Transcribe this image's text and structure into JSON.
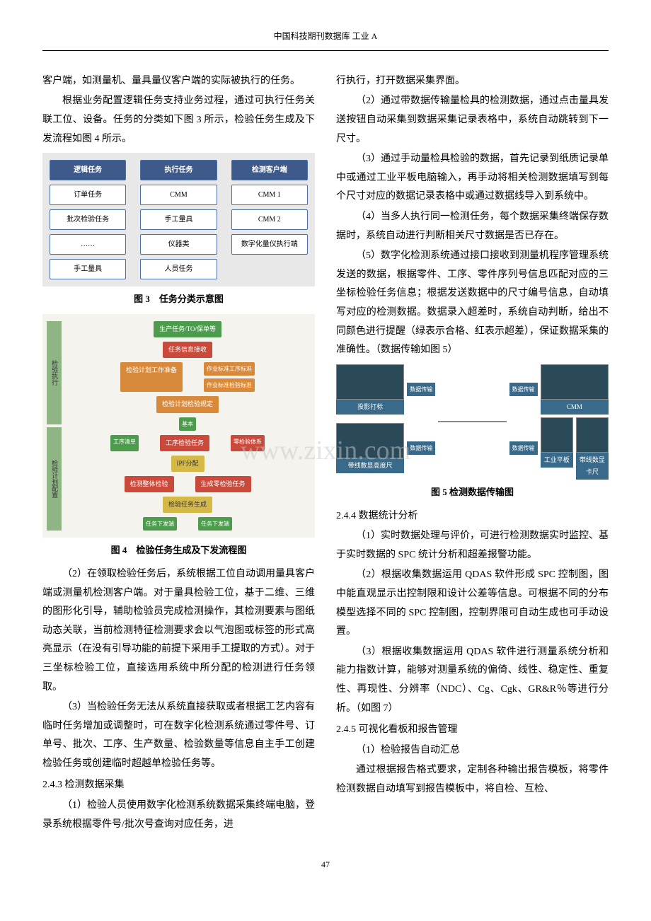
{
  "header": "中国科技期刊数据库 工业 A",
  "page_number": "47",
  "watermark": "www.zixin.com",
  "left_column": {
    "p1": "客户端，如测量机、量具量仪客户端的实际被执行的任务。",
    "p2": "根据业务配置逻辑任务支持业务过程，通过可执行任务关联工位、设备。任务的分类如下图 3 所示，检验任务生成及下发流程如图 4 所示。",
    "fig3": {
      "caption": "图 3　任务分类示意图",
      "col_headers": [
        "逻辑任务",
        "执行任务",
        "检测客户端"
      ],
      "col1": [
        "订单任务",
        "批次检验任务",
        "……",
        "手工量具"
      ],
      "col2": [
        "CMM",
        "手工量具",
        "仪器类",
        "人员任务"
      ],
      "col3": [
        "CMM 1",
        "CMM 2",
        "数字化量仪执行端"
      ]
    },
    "fig4": {
      "caption": "图 4　检验任务生成及下发流程图",
      "side_labels": [
        "检验执行",
        "检验计划配置"
      ],
      "boxes": {
        "top1": "生产任务/TO/保单等",
        "top2": "任务信息接收",
        "o1": "检验计划工作准备",
        "o1r1": "作业标准工序标准",
        "o1r2": "作业标准检验标准",
        "o2": "检验计划检验规定",
        "g1": "基本",
        "g2": "工序清单",
        "r1": "工序检验任务",
        "r2": "零检验体系",
        "y1": "IPF分配",
        "r3": "检测整体检验",
        "r4": "生成零检验任务",
        "y2": "检验任务生成",
        "g3a": "任务下发端",
        "g3b": "任务下发端"
      }
    },
    "p3": "（2）在领取检验任务后，系统根据工位自动调用量具客户端或测量机检测客户端。对于量具检验工位，基于二维、三维的图形化引导，辅助检验员完成检测操作，其检测要素与图纸动态关联，当前检测特征检测要求会以气泡图或标签的形式高亮显示（在没有引导功能的前提下采用手工提取的方式）。对于三坐标检验工位，直接选用系统中所分配的检测进行任务领取。",
    "p4": "（3）当检验任务无法从系统直接获取或者根据工艺内容有临时任务增加或调整时，可在数字化检测系统通过零件号、订单号、批次、工序、生产数量、检验数量等信息自主手工创建检验任务或创建临时超越单检验任务等。",
    "s243": "2.4.3 检测数据采集",
    "p5": "（1）检验人员使用数字化检测系统数据采集终端电脑，登录系统根据零件号/批次号查询对应任务，进"
  },
  "right_column": {
    "p1": "行执行，打开数据采集界面。",
    "p2": "（2）通过带数据传输量检具的检测数据，通过点击量具发送按钮自动采集到数据采集记录表格中，系统自动跳转到下一尺寸。",
    "p3": "（3）通过手动量检具检验的数据，首先记录到纸质记录单中或通过工业平板电脑输入，再手动将相关检测数据填写到每个尺寸对应的数据记录表格中或通过数据线导入到系统中。",
    "p4": "（4）当多人执行同一检测任务，每个数据采集终端保存数据时，系统自动进行判断相关尺寸数据是否已存在。",
    "p5": "（5）数字化检测系统通过接口接收到测量机程序管理系统发送的数据，根据零件、工序、零件序列号信息匹配对应的三坐标检验任务信息；根据发送数据中的尺寸编号信息，自动填写对应的检测数据。数据录入超差时，系统自动判断，给出不同颜色进行提醒（绿表示合格、红表示超差），保证数据采集的准确性。（数据传输如图 5）",
    "fig5": {
      "caption": "图 5 检测数据传输图",
      "labels": {
        "projector": "投影打标",
        "cmm": "CMM",
        "tablet": "工业平板",
        "caliper": "带线数显卡尺",
        "gauge": "带线数显高度尺",
        "arrow": "数据传输"
      }
    },
    "s244": "2.4.4 数据统计分析",
    "p6": "（1）实时数据处理与评价，可进行检测数据实时监控、基于实时数据的 SPC 统计分析和超差报警功能。",
    "p7": "（2）根据收集数据运用 QDAS 软件形成 SPC 控制图，图中能直观显示出控制限和设计公差等信息。可根据不同的分布模型选择不同的 SPC 控制图，控制界限可自动生成也可手动设置。",
    "p8": "（3）根据收集数据运用 QDAS 软件进行测量系统分析和能力指数计算，能够对测量系统的偏倚、线性、稳定性、重复性、再现性、分辨率（NDC）、Cg、Cgk、GR&R％等进行分析。（如图 7）",
    "s245": "2.4.5 可视化看板和报告管理",
    "p9": "（1）检验报告自动汇总",
    "p10": "通过根据报告格式要求，定制各种输出报告模板，将零件检测数据自动填写到报告模板中，将自检、互检、"
  }
}
